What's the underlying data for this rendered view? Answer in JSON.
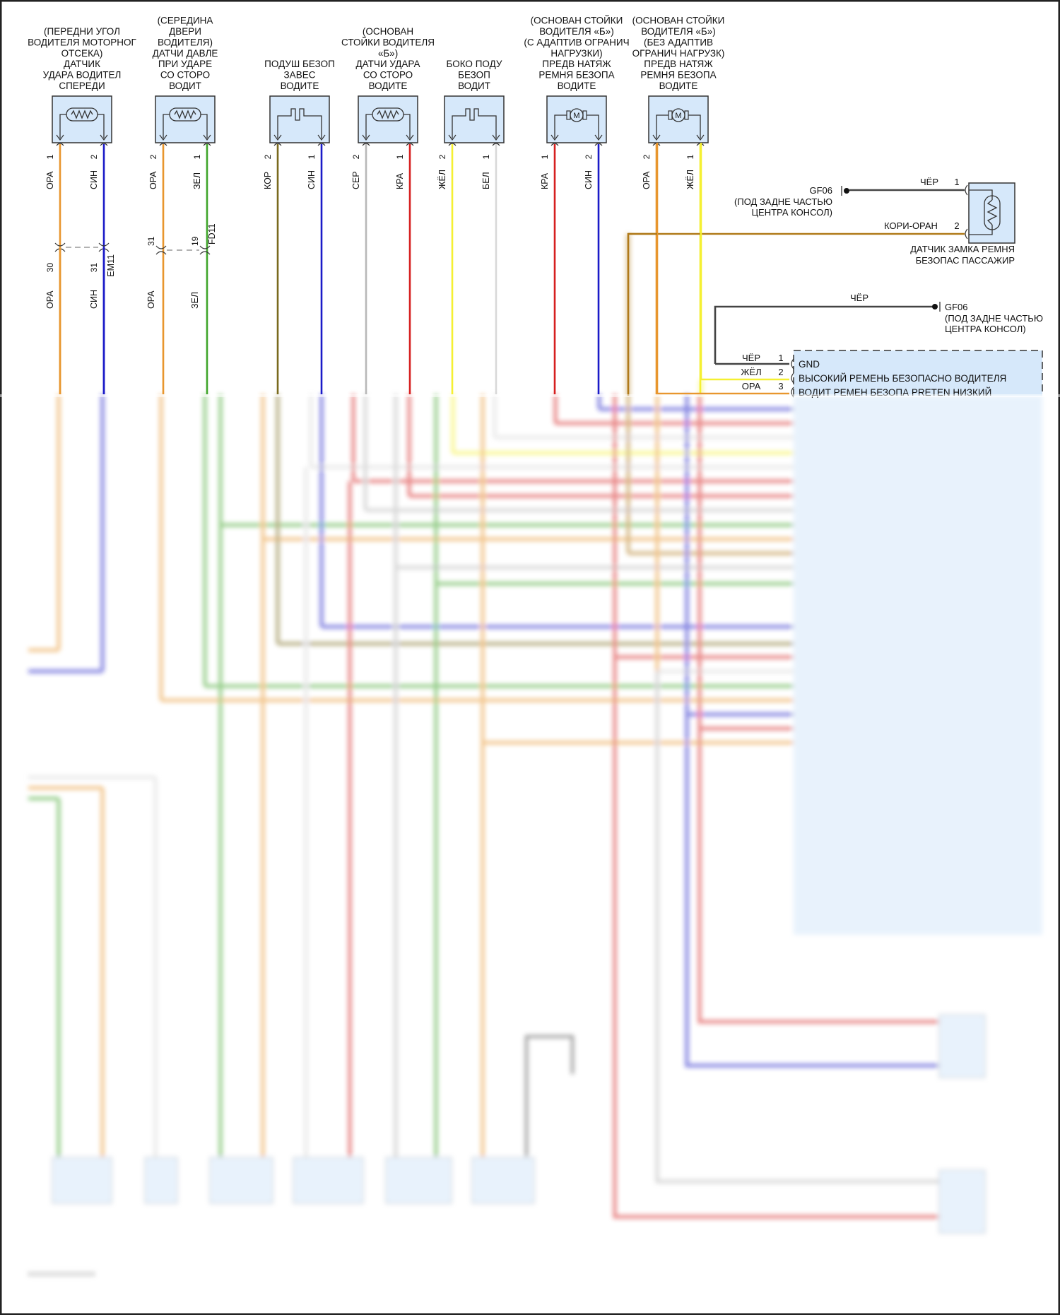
{
  "colors": {
    "ОРА": "#e8962e",
    "СИН": "#1a1ac8",
    "ЗЕЛ": "#3fa52a",
    "КОР": "#7a6a1e",
    "СЕР": "#b8b8b8",
    "КРА": "#d62020",
    "ЖЁЛ": "#f5f032",
    "БЕЛ": "#d8d8d8",
    "ЧЁР": "#444444",
    "КОРИ-ОРАН": "#b07a1a",
    "component_fill": "#d6e8fa"
  },
  "components_top": [
    {
      "title": [
        "(ПЕРЕДНИ УГОЛ",
        "ВОДИТЕЛЯ МОТОРНОГ",
        "ОТСЕКА)",
        "ДАТЧИК",
        "УДАРА ВОДИТЕЛ",
        "СПЕРЕДИ"
      ],
      "symbol": "resistor-icon",
      "pins": [
        {
          "num": "1",
          "wire": "ОРА"
        },
        {
          "num": "2",
          "wire": "СИН"
        }
      ]
    },
    {
      "title": [
        "(СЕРЕДИНА",
        "ДВЕРИ",
        "ВОДИТЕЛЯ)",
        "ДАТЧИ ДАВЛЕ",
        "ПРИ УДАРЕ",
        "СО СТОРО",
        "ВОДИТ"
      ],
      "symbol": "resistor-icon",
      "pins": [
        {
          "num": "2",
          "wire": "ОРА"
        },
        {
          "num": "1",
          "wire": "ЗЕЛ"
        }
      ]
    },
    {
      "title": [
        "ПОДУШ БЕЗОП",
        "ЗАВЕС",
        "ВОДИТЕ"
      ],
      "symbol": "squib-icon",
      "pins": [
        {
          "num": "2",
          "wire": "КОР"
        },
        {
          "num": "1",
          "wire": "СИН"
        }
      ]
    },
    {
      "title": [
        "(ОСНОВАН",
        "СТОЙКИ ВОДИТЕЛЯ",
        "«Б»)",
        "ДАТЧИ УДАРА",
        "СО СТОРО",
        "ВОДИТЕ"
      ],
      "symbol": "resistor-icon",
      "pins": [
        {
          "num": "2",
          "wire": "СЕР"
        },
        {
          "num": "1",
          "wire": "КРА"
        }
      ]
    },
    {
      "title": [
        "БОКО ПОДУ",
        "БЕЗОП",
        "ВОДИТ"
      ],
      "symbol": "squib-icon",
      "pins": [
        {
          "num": "2",
          "wire": "ЖЁЛ"
        },
        {
          "num": "1",
          "wire": "БЕЛ"
        }
      ]
    },
    {
      "title": [
        "(ОСНОВАН СТОЙКИ",
        "ВОДИТЕЛЯ «Б»)",
        "(С АДАПТИВ ОГРАНИЧ",
        "НАГРУЗКИ)",
        "ПРЕДВ НАТЯЖ",
        "РЕМНЯ БЕЗОПА",
        "ВОДИТЕ"
      ],
      "symbol": "motor-icon",
      "pins": [
        {
          "num": "1",
          "wire": "КРА"
        },
        {
          "num": "2",
          "wire": "СИН"
        }
      ]
    },
    {
      "title": [
        "(ОСНОВАН СТОЙКИ",
        "ВОДИТЕЛЯ «Б»)",
        "(БЕЗ АДАПТИВ",
        "ОГРАНИЧ НАГРУЗК)",
        "ПРЕДВ НАТЯЖ",
        "РЕМНЯ БЕЗОПА",
        "ВОДИТЕ"
      ],
      "symbol": "motor-icon",
      "pins": [
        {
          "num": "2",
          "wire": "ОРА"
        },
        {
          "num": "1",
          "wire": "ЖЁЛ"
        }
      ]
    }
  ],
  "inline_connectors": [
    {
      "id": "EM11",
      "pins": [
        "30",
        "31"
      ],
      "lower_wires": [
        "ОРА",
        "СИН"
      ]
    },
    {
      "id": "FD11",
      "pins": [
        "31",
        "19"
      ],
      "lower_wires": [
        "ОРА",
        "ЗЕЛ"
      ]
    }
  ],
  "passenger_buckle": {
    "title": [
      "ДАТЧИК ЗАМКА РЕМНЯ",
      "БЕЗОПАС ПАССАЖИР"
    ],
    "pins": [
      {
        "num": "1",
        "wire": "ЧЁР"
      },
      {
        "num": "2",
        "wire": "КОРИ-ОРАН"
      }
    ],
    "ground": {
      "id": "GF06",
      "location": [
        "(ПОД ЗАДНЕ ЧАСТЬЮ",
        "ЦЕНТРА КОНСОЛ)"
      ]
    }
  },
  "module": {
    "ground_wire": "ЧЁР",
    "ground": {
      "id": "GF06",
      "location": [
        "(ПОД ЗАДНЕ ЧАСТЬЮ",
        "ЦЕНТРА КОНСОЛ)"
      ]
    },
    "pins": [
      {
        "num": "1",
        "wire": "ЧЁР",
        "label": "GND"
      },
      {
        "num": "2",
        "wire": "ЖЁЛ",
        "label": "ВЫСОКИЙ РЕМЕНЬ БЕЗОПАСНО ВОДИТЕЛЯ"
      },
      {
        "num": "3",
        "wire": "ОРА",
        "label": "ВОДИТ РЕМЕН БЕЗОПА PRETEN НИЗКИЙ"
      }
    ]
  }
}
